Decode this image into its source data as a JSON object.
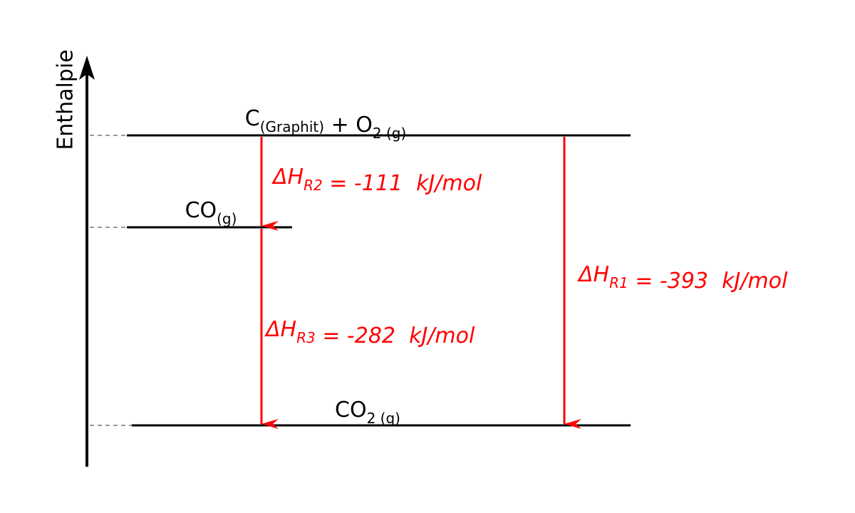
{
  "axis": {
    "label": "Enthalpie"
  },
  "levels": [
    {
      "label": [
        {
          "text": "C",
          "sub": "(Graphit)"
        },
        {
          "text": " + O",
          "sub": "2 (g)"
        }
      ]
    },
    {
      "label": [
        {
          "text": "CO",
          "sub": "(g)"
        }
      ]
    },
    {
      "label": [
        {
          "text": "CO",
          "sub": "2 (g)"
        }
      ]
    }
  ],
  "arrows": [
    {
      "label": [
        {
          "text": "ΔH",
          "sub": "R2"
        },
        {
          "text": " = -111  kJ/mol"
        }
      ]
    },
    {
      "label": [
        {
          "text": "ΔH",
          "sub": "R3"
        },
        {
          "text": " = -282  kJ/mol"
        }
      ]
    },
    {
      "label": [
        {
          "text": "ΔH",
          "sub": "R1"
        },
        {
          "text": " = -393  kJ/mol"
        }
      ]
    }
  ]
}
